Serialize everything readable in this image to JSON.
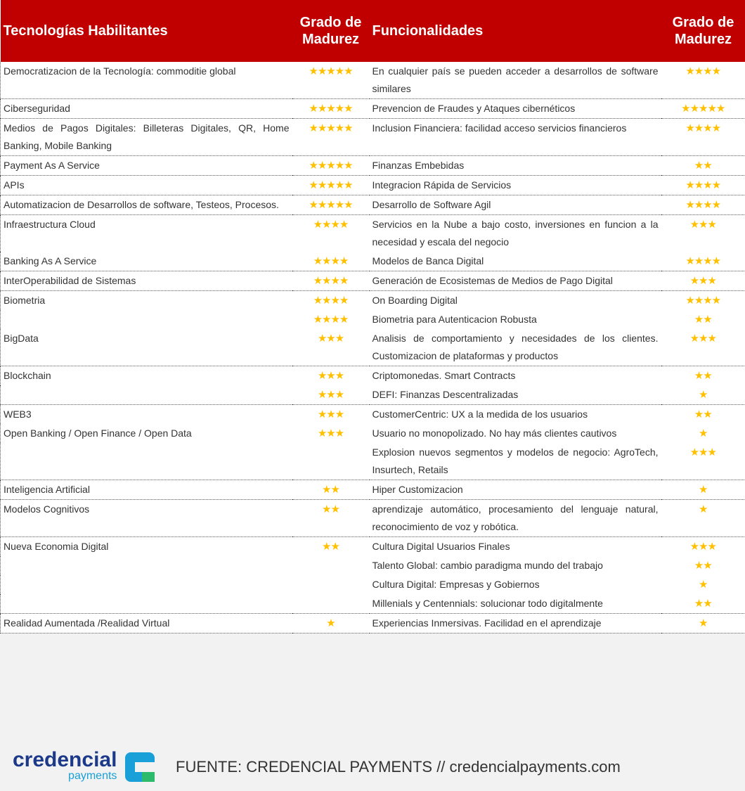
{
  "header": {
    "technologies": "Tecnologías Habilitantes",
    "tech_grade": "Grado de Madurez",
    "functionalities": "Funcionalidades",
    "func_grade": "Grado de Madurez"
  },
  "groups": [
    [
      {
        "tech": "Democratizacion de la Tecnología: commoditie global",
        "tech_grade": 5,
        "func": "En cualquier país se pueden acceder a desarrollos de software similares",
        "func_grade": 4
      }
    ],
    [
      {
        "tech": "Ciberseguridad",
        "tech_grade": 5,
        "func": "Prevencion de Fraudes y Ataques cibernéticos",
        "func_grade": 5
      }
    ],
    [
      {
        "tech": "Medios de Pagos Digitales: Billeteras Digitales, QR, Home Banking, Mobile Banking",
        "tech_grade": 5,
        "func": "Inclusion Financiera: facilidad acceso servicios financieros",
        "func_grade": 4
      }
    ],
    [
      {
        "tech": "Payment As A Service",
        "tech_grade": 5,
        "func": "Finanzas Embebidas",
        "func_grade": 2
      }
    ],
    [
      {
        "tech": "APIs",
        "tech_grade": 5,
        "func": "Integracion Rápida de Servicios",
        "func_grade": 4
      }
    ],
    [
      {
        "tech": "Automatizacion de Desarrollos de software, Testeos, Procesos.",
        "tech_grade": 5,
        "func": "Desarrollo de Software Agil",
        "func_grade": 4
      }
    ],
    [
      {
        "tech": "Infraestructura Cloud",
        "tech_grade": 4,
        "func": "Servicios en la Nube a bajo costo, inversiones en funcion a la necesidad y escala del negocio",
        "func_grade": 3
      },
      {
        "tech": "Banking As A Service",
        "tech_grade": 4,
        "func": "Modelos de Banca Digital",
        "func_grade": 4
      }
    ],
    [
      {
        "tech": "InterOperabilidad de Sistemas",
        "tech_grade": 4,
        "func": "Generación de Ecosistemas de Medios de Pago Digital",
        "func_grade": 3
      }
    ],
    [
      {
        "tech": "Biometria",
        "tech_grade": 4,
        "func": "On Boarding Digital",
        "func_grade": 4
      },
      {
        "tech_grade": 4,
        "func": "Biometria para Autenticacion Robusta",
        "func_grade": 2
      },
      {
        "tech": "BigData",
        "tech_grade": 3,
        "func": "Analisis de comportamiento y necesidades de los clientes. Customizacion de plataformas y productos",
        "func_grade": 3
      }
    ],
    [
      {
        "tech": "Blockchain",
        "tech_grade": 3,
        "func": "Criptomonedas. Smart Contracts",
        "func_grade": 2
      },
      {
        "tech_grade": 3,
        "func": "DEFI: Finanzas Descentralizadas",
        "func_grade": 1
      }
    ],
    [
      {
        "tech": "WEB3",
        "tech_grade": 3,
        "func": "CustomerCentric: UX a la medida de los usuarios",
        "func_grade": 2
      },
      {
        "tech": "Open Banking / Open Finance / Open Data",
        "tech_grade": 3,
        "func": "Usuario no monopolizado. No hay más clientes cautivos",
        "func_grade": 1
      },
      {
        "func": "Explosion nuevos segmentos y modelos de negocio: AgroTech, Insurtech, Retails",
        "func_grade": 3
      }
    ],
    [
      {
        "tech": "Inteligencia Artificial",
        "tech_grade": 2,
        "func": "Hiper Customizacion",
        "func_grade": 1
      }
    ],
    [
      {
        "tech": "Modelos Cognitivos",
        "tech_grade": 2,
        "func": "aprendizaje automático, procesamiento del lenguaje natural, reconocimiento de voz y robótica.",
        "func_grade": 1
      }
    ],
    [
      {
        "tech": "Nueva Economia Digital",
        "tech_grade": 2,
        "func": "Cultura Digital Usuarios Finales",
        "func_grade": 3
      },
      {
        "func": "Talento Global: cambio paradigma mundo del trabajo",
        "func_grade": 2
      },
      {
        "func": "Cultura Digital: Empresas y Gobiernos",
        "func_grade": 1
      },
      {
        "func": "Millenials y Centennials: solucionar todo digitalmente",
        "func_grade": 2
      }
    ],
    [
      {
        "tech": "Realidad Aumentada /Realidad Virtual",
        "tech_grade": 1,
        "func": "Experiencias Inmersivas. Facilidad en el aprendizaje",
        "func_grade": 1
      }
    ]
  ],
  "footer": {
    "logo_main": "credencial",
    "logo_sub": "payments",
    "source": "FUENTE: CREDENCIAL PAYMENTS // credencialpayments.com"
  }
}
